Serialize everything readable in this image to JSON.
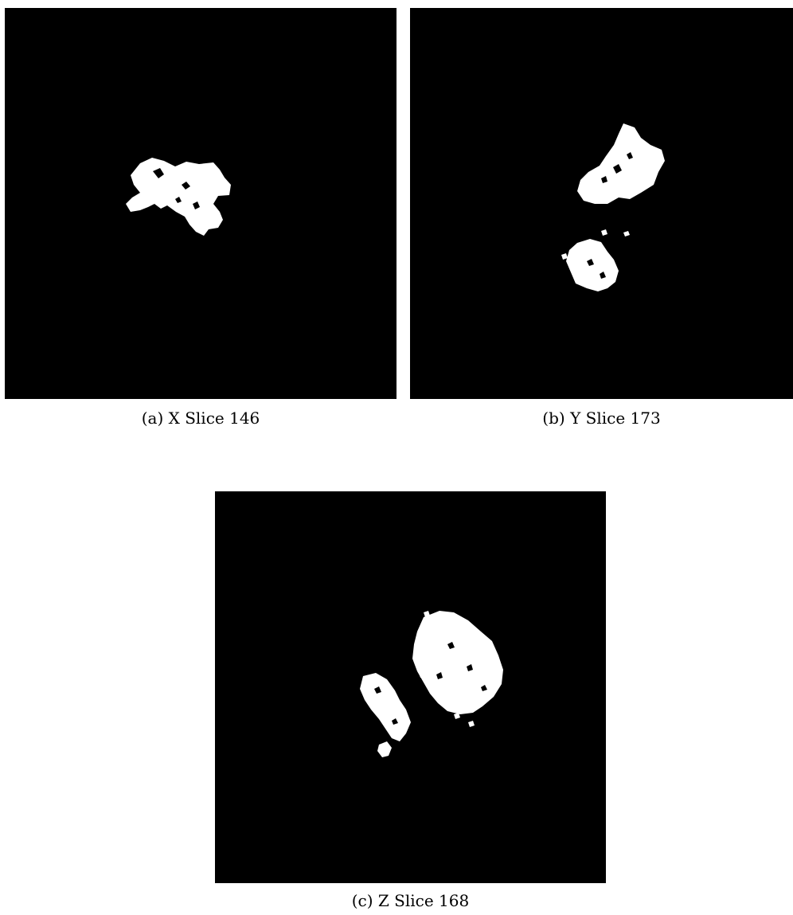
{
  "figure": {
    "panels": [
      {
        "id": "a",
        "caption": "(a) X Slice 146"
      },
      {
        "id": "b",
        "caption": "(b) Y Slice 173"
      },
      {
        "id": "c",
        "caption": "(c) Z Slice 168"
      }
    ]
  },
  "colors": {
    "background": "#000000",
    "mask": "#ffffff"
  }
}
